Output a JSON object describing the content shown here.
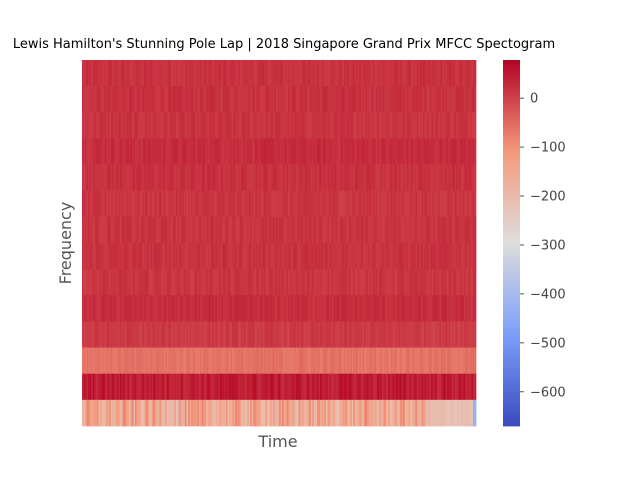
{
  "chart_data": {
    "type": "heatmap",
    "title": "Lewis Hamilton's Stunning Pole Lap | 2018 Singapore Grand Prix MFCC Spectogram",
    "xlabel": "Time",
    "ylabel": "Frequency",
    "colormap": "coolwarm",
    "colorbar_range": [
      -670,
      78
    ],
    "colorbar_ticks": [
      0,
      -100,
      -200,
      -300,
      -400,
      -500,
      -600
    ],
    "colorbar_tick_labels": [
      "0",
      "−100",
      "−200",
      "−300",
      "−400",
      "−500",
      "−600"
    ],
    "n_time_frames": 260,
    "band_values_top_to_bottom": [
      20,
      22,
      18,
      28,
      22,
      16,
      18,
      20,
      16,
      26,
      10,
      -60,
      48,
      -150
    ]
  }
}
